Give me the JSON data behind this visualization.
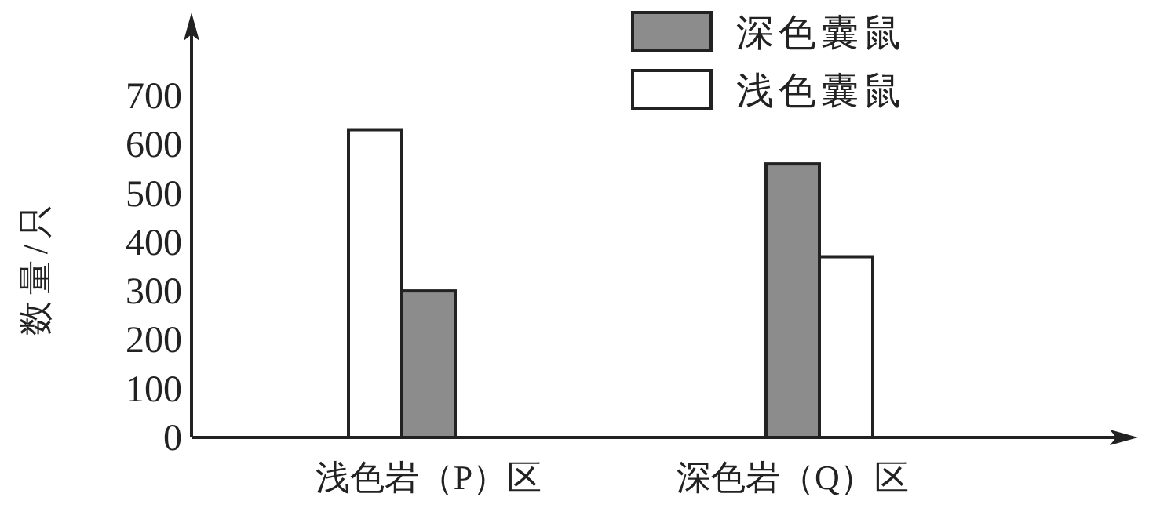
{
  "chart_data": {
    "type": "bar",
    "ylabel": "数量/只",
    "categories": [
      "浅色岩（P）区",
      "深色岩（Q）区"
    ],
    "series": [
      {
        "name": "浅色囊鼠",
        "color": "#ffffff",
        "values": [
          630,
          null
        ]
      },
      {
        "name": "深色囊鼠",
        "color": "#8c8c8c",
        "values": [
          300,
          560
        ]
      },
      {
        "color": "#ffffff",
        "values": [
          null,
          370
        ]
      }
    ],
    "ylim": [
      0,
      870
    ],
    "yticks": [
      0,
      100,
      200,
      300,
      400,
      500,
      600,
      700
    ],
    "grid": false,
    "legend": "top right"
  }
}
